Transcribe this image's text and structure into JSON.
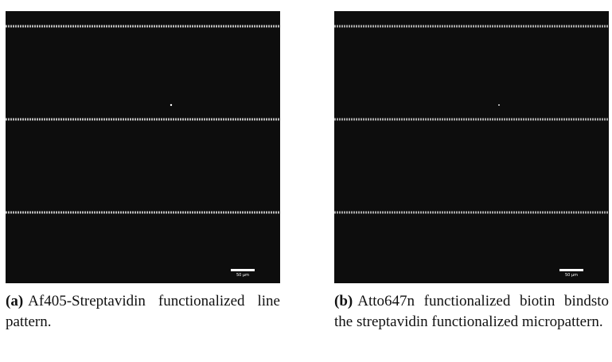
{
  "figures": [
    {
      "label": "(a)",
      "caption": "Af405-Streptavidin functionalized line pattern.",
      "scale_bar": "50 µm"
    },
    {
      "label": "(b)",
      "caption": "Atto647n functionalized biotin bindsto the streptavidin functionalized micropattern.",
      "scale_bar": "50 µm"
    }
  ]
}
